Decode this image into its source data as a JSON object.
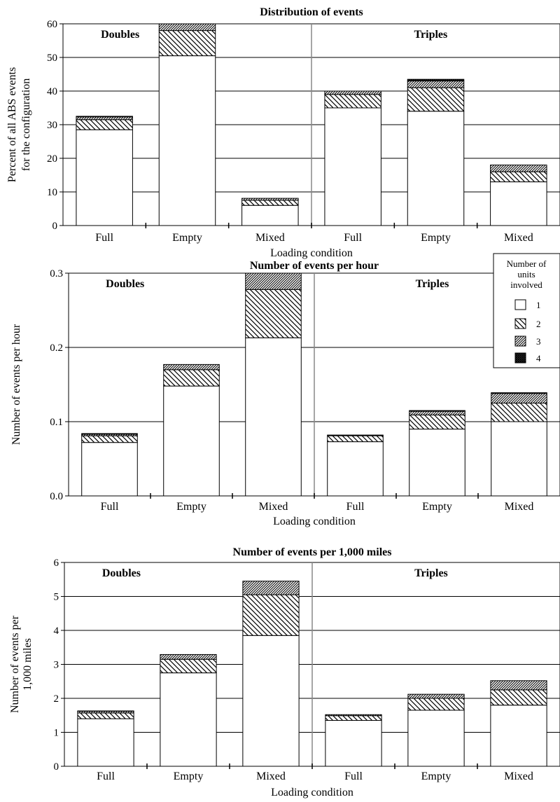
{
  "chart_data": [
    {
      "type": "bar",
      "stacked": true,
      "title": "Distribution of events",
      "ylabel": "Percent of all ABS events for the configuration",
      "ylabel_lines": [
        "Percent of all ABS events",
        "for the configuration"
      ],
      "xlabel": "Loading condition",
      "ylim": [
        0,
        60
      ],
      "yticks": [
        "0",
        "10",
        "20",
        "30",
        "40",
        "50",
        "60"
      ],
      "ytick_values": [
        0,
        10,
        20,
        30,
        40,
        50,
        60
      ],
      "groups": [
        "Doubles",
        "Triples"
      ],
      "categories": [
        "Full",
        "Empty",
        "Mixed",
        "Full",
        "Empty",
        "Mixed"
      ],
      "series": [
        {
          "name": "1",
          "values": [
            28.5,
            50.5,
            6.0,
            35.0,
            34.0,
            13.0
          ]
        },
        {
          "name": "2",
          "values": [
            3.0,
            7.5,
            1.5,
            4.0,
            7.0,
            3.0
          ]
        },
        {
          "name": "3",
          "values": [
            0.8,
            2.0,
            0.6,
            1.0,
            2.0,
            2.0
          ]
        },
        {
          "name": "4",
          "values": [
            0.2,
            0.0,
            0.0,
            0.0,
            0.5,
            0.0
          ]
        }
      ],
      "grid": true
    },
    {
      "type": "bar",
      "stacked": true,
      "title": "Number of events per hour",
      "ylabel": "Number of events per hour",
      "ylabel_lines": [
        "Number of events per hour"
      ],
      "xlabel": "Loading condition",
      "ylim": [
        0,
        0.3
      ],
      "yticks": [
        "0.0",
        "0.1",
        "0.2",
        "0.3"
      ],
      "ytick_values": [
        0,
        0.1,
        0.2,
        0.3
      ],
      "groups": [
        "Doubles",
        "Triples"
      ],
      "categories": [
        "Full",
        "Empty",
        "Mixed",
        "Full",
        "Empty",
        "Mixed"
      ],
      "series": [
        {
          "name": "1",
          "values": [
            0.072,
            0.148,
            0.213,
            0.073,
            0.09,
            0.1
          ]
        },
        {
          "name": "2",
          "values": [
            0.009,
            0.022,
            0.065,
            0.008,
            0.019,
            0.025
          ]
        },
        {
          "name": "3",
          "values": [
            0.002,
            0.007,
            0.022,
            0.001,
            0.005,
            0.013
          ]
        },
        {
          "name": "4",
          "values": [
            0.001,
            0.0,
            0.0,
            0.0,
            0.001,
            0.001
          ]
        }
      ],
      "grid": true
    },
    {
      "type": "bar",
      "stacked": true,
      "title": "Number of events per 1,000 miles",
      "ylabel": "Number of events per 1,000 miles",
      "ylabel_lines": [
        "Number of events per",
        "1,000 miles"
      ],
      "xlabel": "Loading condition",
      "ylim": [
        0,
        6
      ],
      "yticks": [
        "0",
        "1",
        "2",
        "3",
        "4",
        "5",
        "6"
      ],
      "ytick_values": [
        0,
        1,
        2,
        3,
        4,
        5,
        6
      ],
      "groups": [
        "Doubles",
        "Triples"
      ],
      "categories": [
        "Full",
        "Empty",
        "Mixed",
        "Full",
        "Empty",
        "Mixed"
      ],
      "series": [
        {
          "name": "1",
          "values": [
            1.4,
            2.75,
            3.85,
            1.35,
            1.65,
            1.8
          ]
        },
        {
          "name": "2",
          "values": [
            0.17,
            0.4,
            1.2,
            0.14,
            0.35,
            0.45
          ]
        },
        {
          "name": "3",
          "values": [
            0.05,
            0.14,
            0.4,
            0.03,
            0.12,
            0.27
          ]
        },
        {
          "name": "4",
          "values": [
            0.01,
            0.0,
            0.0,
            0.0,
            0.0,
            0.0
          ]
        }
      ],
      "grid": true
    }
  ],
  "legend": {
    "title_lines": [
      "Number of",
      "units",
      "involved"
    ],
    "items": [
      {
        "label": "1",
        "fill": "white"
      },
      {
        "label": "2",
        "fill": "diag"
      },
      {
        "label": "3",
        "fill": "dense-diag"
      },
      {
        "label": "4",
        "fill": "crosshatch"
      }
    ]
  },
  "colors": {
    "bar_outline": "#000000",
    "grid": "#000000",
    "background": "#ffffff"
  }
}
